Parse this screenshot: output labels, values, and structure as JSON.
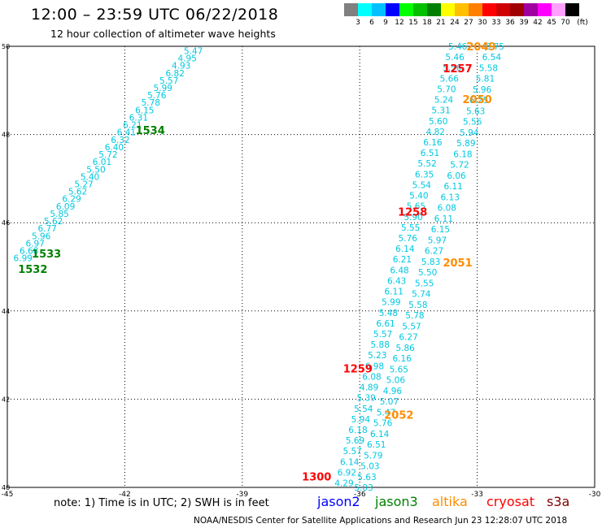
{
  "header": {
    "title": "12:00 – 23:59 UTC 06/22/2018",
    "subtitle": "12 hour collection of altimeter wave heights"
  },
  "color_scale": {
    "unit": "(ft)",
    "labels": [
      "3",
      "6",
      "9",
      "12",
      "15",
      "18",
      "21",
      "24",
      "27",
      "30",
      "33",
      "36",
      "39",
      "42",
      "45",
      "70"
    ],
    "colors": [
      "#808080",
      "#00ffff",
      "#00c0ff",
      "#0000ff",
      "#00ff00",
      "#00c000",
      "#008000",
      "#ffff00",
      "#ffc000",
      "#ff8000",
      "#ff0000",
      "#d00000",
      "#a00000",
      "#a000a0",
      "#ff00ff",
      "#ffa0ff",
      "#000000"
    ]
  },
  "chart_data": {
    "type": "scatter",
    "x_axis": {
      "range": [
        -45,
        -30
      ],
      "ticks": [
        -45,
        -42,
        -39,
        -36,
        -33,
        -30
      ],
      "tick_labels": [
        "-45",
        "-42",
        "-39",
        "-36",
        "-33",
        "-30"
      ]
    },
    "y_axis": {
      "range": [
        40,
        50
      ],
      "ticks": [
        40,
        42,
        44,
        46,
        48,
        50
      ],
      "tick_labels": [
        "40",
        "42",
        "44",
        "46",
        "48",
        "50"
      ]
    },
    "grid": true,
    "value_color": "#00c8e0",
    "tracks": [
      {
        "start": [
          -40.25,
          49.9
        ],
        "end": [
          -44.6,
          45.2
        ],
        "values": [
          "5.47",
          "4.95",
          "4.93",
          "6.82",
          "5.57",
          "5.99",
          "5.76",
          "5.78",
          "6.15",
          "6.31",
          "6.21",
          "6.41",
          "6.32",
          "6.40",
          "5.72",
          "6.01",
          "5.50",
          "5.40",
          "5.27",
          "5.62",
          "6.29",
          "6.09",
          "5.85",
          "5.62",
          "6.77",
          "5.96",
          "6.97",
          "6.68",
          "6.99"
        ]
      },
      {
        "start": [
          -33.5,
          50.0
        ],
        "end": [
          -36.4,
          40.1
        ],
        "values": [
          "5.46",
          "5.46",
          "5.56",
          "5.66",
          "5.70",
          "5.24",
          "5.31",
          "5.60",
          "4.82",
          "6.16",
          "6.51",
          "5.52",
          "6.35",
          "5.54",
          "5.40",
          "5.65",
          "5.90",
          "5.55",
          "5.76",
          "6.14",
          "6.21",
          "6.48",
          "6.43",
          "6.11",
          "5.99",
          "5.48",
          "6.61",
          "5.57",
          "5.88",
          "5.23",
          "6.98",
          "6.08",
          "4.89",
          "5.39",
          "5.54",
          "5.94",
          "6.18",
          "5.69",
          "5.57",
          "6.14",
          "6.92",
          "4.29"
        ]
      },
      {
        "start": [
          -32.55,
          50.0
        ],
        "end": [
          -35.9,
          40.0
        ],
        "values": [
          "6.75",
          "6.54",
          "5.58",
          "5.81",
          "5.96",
          "6.25",
          "5.63",
          "5.56",
          "5.94",
          "5.89",
          "6.18",
          "5.72",
          "6.06",
          "6.11",
          "6.13",
          "6.08",
          "6.11",
          "6.15",
          "5.97",
          "6.27",
          "5.83",
          "5.50",
          "5.55",
          "5.74",
          "5.58",
          "5.78",
          "5.57",
          "6.27",
          "5.86",
          "6.16",
          "5.65",
          "5.06",
          "4.96",
          "5.07",
          "5.47",
          "5.76",
          "6.14",
          "6.51",
          "5.79",
          "5.03",
          "5.63",
          "5.03"
        ]
      }
    ],
    "time_labels": [
      {
        "text": "1534",
        "x": -41.35,
        "y": 48.1,
        "satellite": "jason3"
      },
      {
        "text": "1533",
        "x": -44.0,
        "y": 45.3,
        "satellite": "jason3"
      },
      {
        "text": "1532",
        "x": -44.35,
        "y": 44.95,
        "satellite": "jason3"
      },
      {
        "text": "1257",
        "x": -33.5,
        "y": 49.5,
        "satellite": "cryosat"
      },
      {
        "text": "1258",
        "x": -34.65,
        "y": 46.25,
        "satellite": "cryosat"
      },
      {
        "text": "1259",
        "x": -36.05,
        "y": 42.7,
        "satellite": "cryosat"
      },
      {
        "text": "1300",
        "x": -37.1,
        "y": 40.25,
        "satellite": "cryosat"
      },
      {
        "text": "2049",
        "x": -32.9,
        "y": 50.0,
        "satellite": "altika"
      },
      {
        "text": "2050",
        "x": -33.0,
        "y": 48.8,
        "satellite": "altika"
      },
      {
        "text": "2051",
        "x": -33.5,
        "y": 45.1,
        "satellite": "altika"
      },
      {
        "text": "2052",
        "x": -35.0,
        "y": 41.65,
        "satellite": "altika"
      }
    ],
    "satellites": [
      {
        "name": "jason2",
        "color": "#0000ff"
      },
      {
        "name": "jason3",
        "color": "#008000"
      },
      {
        "name": "altika",
        "color": "#ff8c00"
      },
      {
        "name": "cryosat",
        "color": "#ff0000"
      },
      {
        "name": "s3a",
        "color": "#800000"
      }
    ]
  },
  "footer": {
    "note": "note: 1) Time is in UTC; 2) SWH is in feet",
    "credit": "NOAA/NESDIS Center for Satellite Applications and Research   Jun 23 12:28:07 UTC 2018"
  }
}
